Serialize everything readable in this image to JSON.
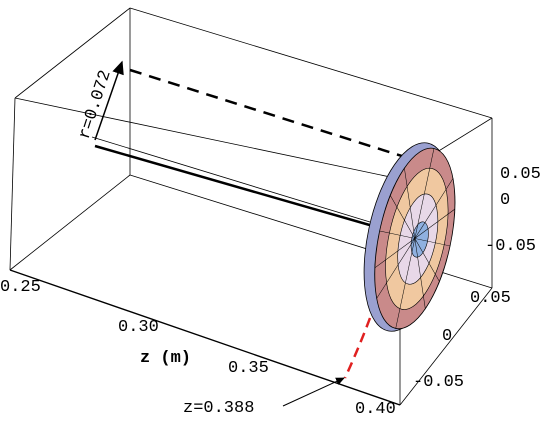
{
  "annotations": {
    "radius": "r=0.072",
    "z_position": "z=0.388"
  },
  "z_axis": {
    "label": "z (m)",
    "ticks": [
      "0.25",
      "0.30",
      "0.35",
      "0.40"
    ]
  },
  "right_axis_upper": {
    "ticks": [
      "0.05",
      "0",
      "-0.05"
    ]
  },
  "right_axis_lower": {
    "ticks": [
      "0.05",
      "0",
      "-0.05"
    ]
  }
}
